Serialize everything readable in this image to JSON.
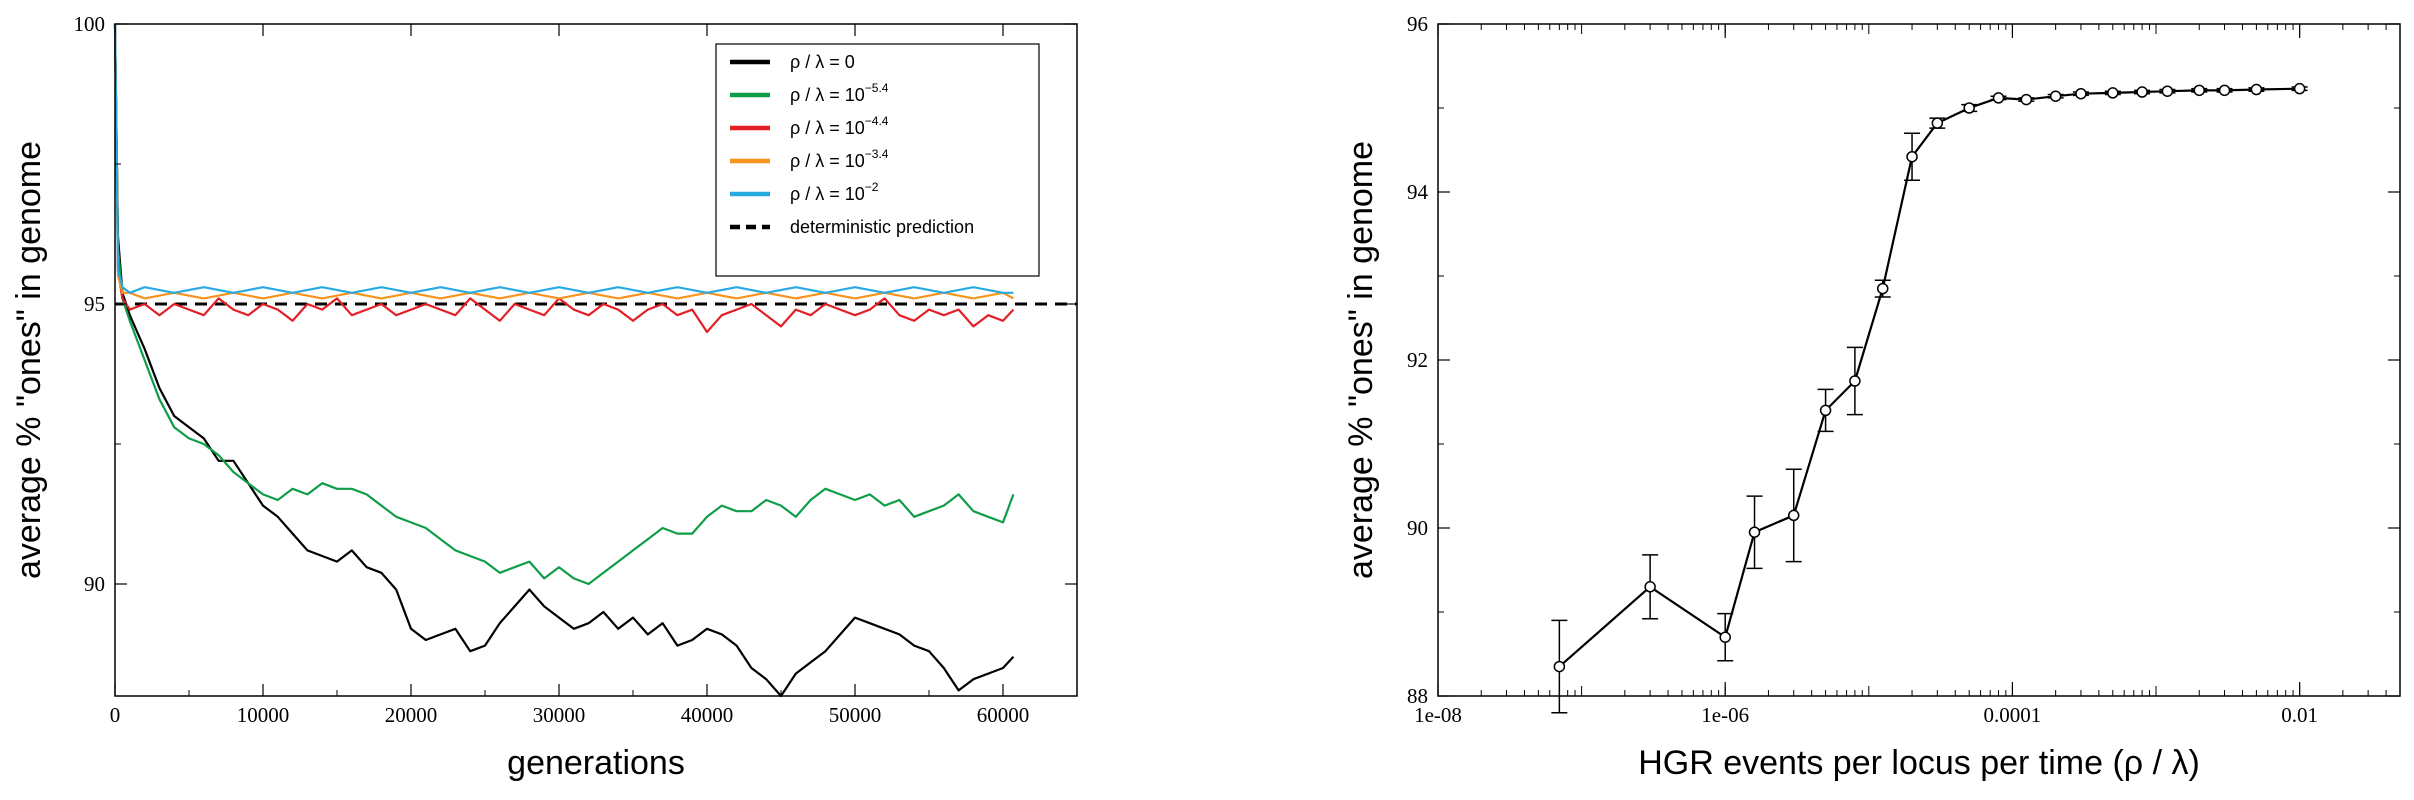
{
  "chart_data": [
    {
      "type": "line",
      "xlabel": "generations",
      "ylabel": "average % \"ones\" in genome",
      "xlim": [
        0,
        65000
      ],
      "ylim": [
        88,
        100
      ],
      "xticks": [
        "0",
        "10000",
        "20000",
        "30000",
        "40000",
        "50000",
        "60000"
      ],
      "yticks": [
        "90",
        "95",
        "100"
      ],
      "legend_position": "top-right",
      "series": [
        {
          "name": "ρ / λ = 0",
          "legend_exp": "",
          "color": "#000000",
          "x": [
            0,
            200,
            500,
            1000,
            2000,
            3000,
            4000,
            5000,
            6000,
            7000,
            8000,
            9000,
            10000,
            11000,
            12000,
            13000,
            14000,
            15000,
            16000,
            17000,
            18000,
            19000,
            20000,
            21000,
            22000,
            23000,
            24000,
            25000,
            26000,
            27000,
            28000,
            29000,
            30000,
            31000,
            32000,
            33000,
            34000,
            35000,
            36000,
            37000,
            38000,
            39000,
            40000,
            41000,
            42000,
            43000,
            44000,
            45000,
            46000,
            47000,
            48000,
            49000,
            50000,
            51000,
            52000,
            53000,
            54000,
            55000,
            56000,
            57000,
            58000,
            59000,
            60000,
            60700
          ],
          "y": [
            100,
            96.2,
            95.2,
            94.8,
            94.2,
            93.5,
            93.0,
            92.8,
            92.6,
            92.2,
            92.2,
            91.8,
            91.4,
            91.2,
            90.9,
            90.6,
            90.5,
            90.4,
            90.6,
            90.3,
            90.2,
            89.9,
            89.2,
            89.0,
            89.1,
            89.2,
            88.8,
            88.9,
            89.3,
            89.6,
            89.9,
            89.6,
            89.4,
            89.2,
            89.3,
            89.5,
            89.2,
            89.4,
            89.1,
            89.3,
            88.9,
            89.0,
            89.2,
            89.1,
            88.9,
            88.5,
            88.3,
            88.0,
            88.4,
            88.6,
            88.8,
            89.1,
            89.4,
            89.3,
            89.2,
            89.1,
            88.9,
            88.8,
            88.5,
            88.1,
            88.3,
            88.4,
            88.5,
            88.7
          ]
        },
        {
          "name": "ρ / λ = 10",
          "legend_exp": "−5.4",
          "color": "#0f9d48",
          "x": [
            0,
            200,
            500,
            1000,
            2000,
            3000,
            4000,
            5000,
            6000,
            7000,
            8000,
            9000,
            10000,
            11000,
            12000,
            13000,
            14000,
            15000,
            16000,
            17000,
            18000,
            19000,
            20000,
            21000,
            22000,
            23000,
            24000,
            25000,
            26000,
            27000,
            28000,
            29000,
            30000,
            31000,
            32000,
            33000,
            34000,
            35000,
            36000,
            37000,
            38000,
            39000,
            40000,
            41000,
            42000,
            43000,
            44000,
            45000,
            46000,
            47000,
            48000,
            49000,
            50000,
            51000,
            52000,
            53000,
            54000,
            55000,
            56000,
            57000,
            58000,
            59000,
            60000,
            60700
          ],
          "y": [
            100,
            96.0,
            95.1,
            94.7,
            94.0,
            93.3,
            92.8,
            92.6,
            92.5,
            92.3,
            92.0,
            91.8,
            91.6,
            91.5,
            91.7,
            91.6,
            91.8,
            91.7,
            91.7,
            91.6,
            91.4,
            91.2,
            91.1,
            91.0,
            90.8,
            90.6,
            90.5,
            90.4,
            90.2,
            90.3,
            90.4,
            90.1,
            90.3,
            90.1,
            90.0,
            90.2,
            90.4,
            90.6,
            90.8,
            91.0,
            90.9,
            90.9,
            91.2,
            91.4,
            91.3,
            91.3,
            91.5,
            91.4,
            91.2,
            91.5,
            91.7,
            91.6,
            91.5,
            91.6,
            91.4,
            91.5,
            91.2,
            91.3,
            91.4,
            91.6,
            91.3,
            91.2,
            91.1,
            91.6
          ]
        },
        {
          "name": "ρ / λ = 10",
          "legend_exp": "−4.4",
          "color": "#e31f26",
          "x": [
            0,
            200,
            500,
            1000,
            2000,
            3000,
            4000,
            5000,
            6000,
            7000,
            8000,
            9000,
            10000,
            11000,
            12000,
            13000,
            14000,
            15000,
            16000,
            17000,
            18000,
            19000,
            20000,
            21000,
            22000,
            23000,
            24000,
            25000,
            26000,
            27000,
            28000,
            29000,
            30000,
            31000,
            32000,
            33000,
            34000,
            35000,
            36000,
            37000,
            38000,
            39000,
            40000,
            41000,
            42000,
            43000,
            44000,
            45000,
            46000,
            47000,
            48000,
            49000,
            50000,
            51000,
            52000,
            53000,
            54000,
            55000,
            56000,
            57000,
            58000,
            59000,
            60000,
            60700
          ],
          "y": [
            100,
            95.6,
            95.1,
            94.9,
            95.0,
            94.8,
            95.0,
            94.9,
            94.8,
            95.1,
            94.9,
            94.8,
            95.0,
            94.9,
            94.7,
            95.0,
            94.9,
            95.1,
            94.8,
            94.9,
            95.0,
            94.8,
            94.9,
            95.0,
            94.9,
            94.8,
            95.1,
            94.9,
            94.7,
            95.0,
            94.9,
            94.8,
            95.1,
            94.9,
            94.8,
            95.0,
            94.9,
            94.7,
            94.9,
            95.0,
            94.8,
            94.9,
            94.5,
            94.8,
            94.9,
            95.0,
            94.8,
            94.6,
            94.9,
            94.8,
            95.0,
            94.9,
            94.8,
            94.9,
            95.1,
            94.8,
            94.7,
            94.9,
            94.8,
            94.9,
            94.6,
            94.8,
            94.7,
            94.9
          ]
        },
        {
          "name": "ρ / λ = 10",
          "legend_exp": "−3.4",
          "color": "#f7941d",
          "x": [
            0,
            200,
            500,
            1000,
            2000,
            4000,
            6000,
            8000,
            10000,
            12000,
            14000,
            16000,
            18000,
            20000,
            22000,
            24000,
            26000,
            28000,
            30000,
            32000,
            34000,
            36000,
            38000,
            40000,
            42000,
            44000,
            46000,
            48000,
            50000,
            52000,
            54000,
            56000,
            58000,
            60000,
            60700
          ],
          "y": [
            100,
            95.5,
            95.2,
            95.2,
            95.1,
            95.2,
            95.1,
            95.2,
            95.1,
            95.2,
            95.1,
            95.2,
            95.1,
            95.2,
            95.1,
            95.2,
            95.1,
            95.2,
            95.1,
            95.2,
            95.1,
            95.2,
            95.1,
            95.2,
            95.1,
            95.2,
            95.1,
            95.2,
            95.1,
            95.2,
            95.1,
            95.2,
            95.1,
            95.2,
            95.1
          ]
        },
        {
          "name": "ρ / λ = 10",
          "legend_exp": "−2",
          "color": "#27aae1",
          "x": [
            0,
            200,
            500,
            1000,
            2000,
            4000,
            6000,
            8000,
            10000,
            12000,
            14000,
            16000,
            18000,
            20000,
            22000,
            24000,
            26000,
            28000,
            30000,
            32000,
            34000,
            36000,
            38000,
            40000,
            42000,
            44000,
            46000,
            48000,
            50000,
            52000,
            54000,
            56000,
            58000,
            60000,
            60700
          ],
          "y": [
            100,
            95.6,
            95.3,
            95.2,
            95.3,
            95.2,
            95.3,
            95.2,
            95.3,
            95.2,
            95.3,
            95.2,
            95.3,
            95.2,
            95.3,
            95.2,
            95.3,
            95.2,
            95.3,
            95.2,
            95.3,
            95.2,
            95.3,
            95.2,
            95.3,
            95.2,
            95.3,
            95.2,
            95.3,
            95.2,
            95.3,
            95.2,
            95.3,
            95.2,
            95.2
          ]
        }
      ],
      "reference_line": {
        "name": "deterministic prediction",
        "y": 95.0,
        "style": "dashed",
        "color": "#000000"
      }
    },
    {
      "type": "line",
      "xlabel": "HGR events per locus per time  (ρ / λ)",
      "ylabel": "average % \"ones\" in genome",
      "xscale": "log",
      "xlim": [
        1e-08,
        0.05
      ],
      "ylim": [
        88,
        96
      ],
      "xticks": [
        "1e-08",
        "1e-06",
        "0.0001",
        "0.01"
      ],
      "yticks": [
        "88",
        "90",
        "92",
        "94",
        "96"
      ],
      "markers": "open-circle",
      "error_bars": true,
      "series": [
        {
          "name": "",
          "color": "#000000",
          "x": [
            7e-08,
            3e-07,
            1e-06,
            1.6e-06,
            3e-06,
            5e-06,
            8e-06,
            1.25e-05,
            2e-05,
            3e-05,
            5e-05,
            8e-05,
            0.000125,
            0.0002,
            0.0003,
            0.0005,
            0.0008,
            0.0012,
            0.002,
            0.003,
            0.005,
            0.01
          ],
          "y": [
            88.35,
            89.3,
            88.7,
            89.95,
            90.15,
            91.4,
            91.75,
            92.85,
            94.42,
            94.82,
            95.0,
            95.12,
            95.1,
            95.14,
            95.17,
            95.18,
            95.19,
            95.2,
            95.21,
            95.21,
            95.22,
            95.23
          ],
          "err": [
            0.55,
            0.38,
            0.28,
            0.43,
            0.55,
            0.25,
            0.4,
            0.1,
            0.28,
            0.06,
            0.04,
            0.02,
            0.02,
            0.02,
            0.02,
            0.02,
            0.02,
            0.02,
            0.02,
            0.02,
            0.02,
            0.02
          ]
        }
      ]
    }
  ]
}
